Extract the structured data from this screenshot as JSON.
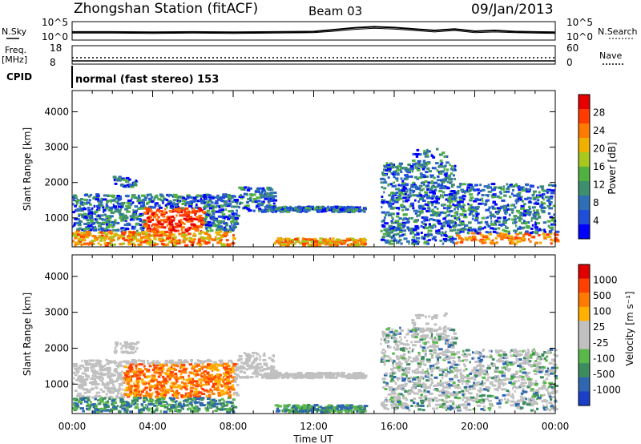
{
  "header": {
    "station": "Zhongshan Station (fitACF)",
    "beam": "Beam 03",
    "date": "09/Jan/2013",
    "nsky_label": "N.Sky",
    "nsearch_label": "N.Search",
    "freq_label_1": "Freq.",
    "freq_label_2": "[MHz]",
    "nave_label": "Nave",
    "cpid_label": "CPID",
    "cpid_value": "normal (fast stereo) 153",
    "noise_ticks_left": [
      "10^5",
      "10^0"
    ],
    "noise_ticks_right": [
      "10^5",
      "10^0"
    ],
    "freq_ticks": [
      "18",
      "8"
    ],
    "nave_ticks": [
      "60",
      "0"
    ]
  },
  "chart_data": [
    {
      "type": "heatmap",
      "title": "",
      "xlabel": "",
      "ylabel": "Slant Range [km]",
      "xlim": [
        0,
        24
      ],
      "ylim": [
        180,
        4600
      ],
      "yticks": [
        1000,
        2000,
        3000,
        4000
      ],
      "colorbar": {
        "label": "Power [dB]",
        "ticks": [
          "4",
          "8",
          "12",
          "16",
          "20",
          "24",
          "28"
        ],
        "colors": [
          "#0000ff",
          "#1f4fd8",
          "#2f6fb8",
          "#3d8f6e",
          "#50b040",
          "#a8c820",
          "#f0b000",
          "#ff7a00",
          "#ff3c00",
          "#e60000"
        ]
      }
    },
    {
      "type": "heatmap",
      "title": "",
      "xlabel": "Time UT",
      "ylabel": "Slant Range [km]",
      "xlim": [
        0,
        24
      ],
      "ylim": [
        180,
        4600
      ],
      "yticks": [
        1000,
        2000,
        3000,
        4000
      ],
      "xticks": [
        "00:00",
        "04:00",
        "08:00",
        "12:00",
        "16:00",
        "20:00",
        "00:00"
      ],
      "colorbar": {
        "label": "Velocity [m s⁻¹]",
        "ticks": [
          "1000",
          "500",
          "100",
          "25",
          "-25",
          "-100",
          "-500",
          "-1000"
        ],
        "colors": [
          "#1c3fc8",
          "#2e66b0",
          "#3c8c60",
          "#5ab84a",
          "#c0c0c0",
          "#c0c0c0",
          "#ffb000",
          "#ff7a00",
          "#ff4000",
          "#e00000"
        ]
      }
    }
  ],
  "noise_series": {
    "x_hours": [
      0,
      2,
      4,
      6,
      8,
      10,
      12,
      13,
      14,
      15,
      16,
      17,
      18,
      19,
      20,
      21,
      22,
      23,
      24
    ],
    "nsky_log10": [
      2.2,
      2.2,
      2.1,
      2.2,
      2.1,
      2.2,
      2.3,
      2.8,
      3.3,
      3.6,
      3.4,
      3.0,
      2.6,
      3.0,
      2.4,
      2.6,
      2.3,
      2.2,
      2.1
    ],
    "nsearch_log10": [
      1.9,
      1.9,
      1.8,
      1.9,
      1.8,
      1.9,
      2.0,
      2.4,
      2.9,
      3.2,
      3.0,
      2.6,
      2.2,
      2.6,
      2.0,
      2.2,
      2.0,
      1.9,
      1.8
    ]
  },
  "freq_series": {
    "freq_mhz": 10.3,
    "nave": 20
  }
}
